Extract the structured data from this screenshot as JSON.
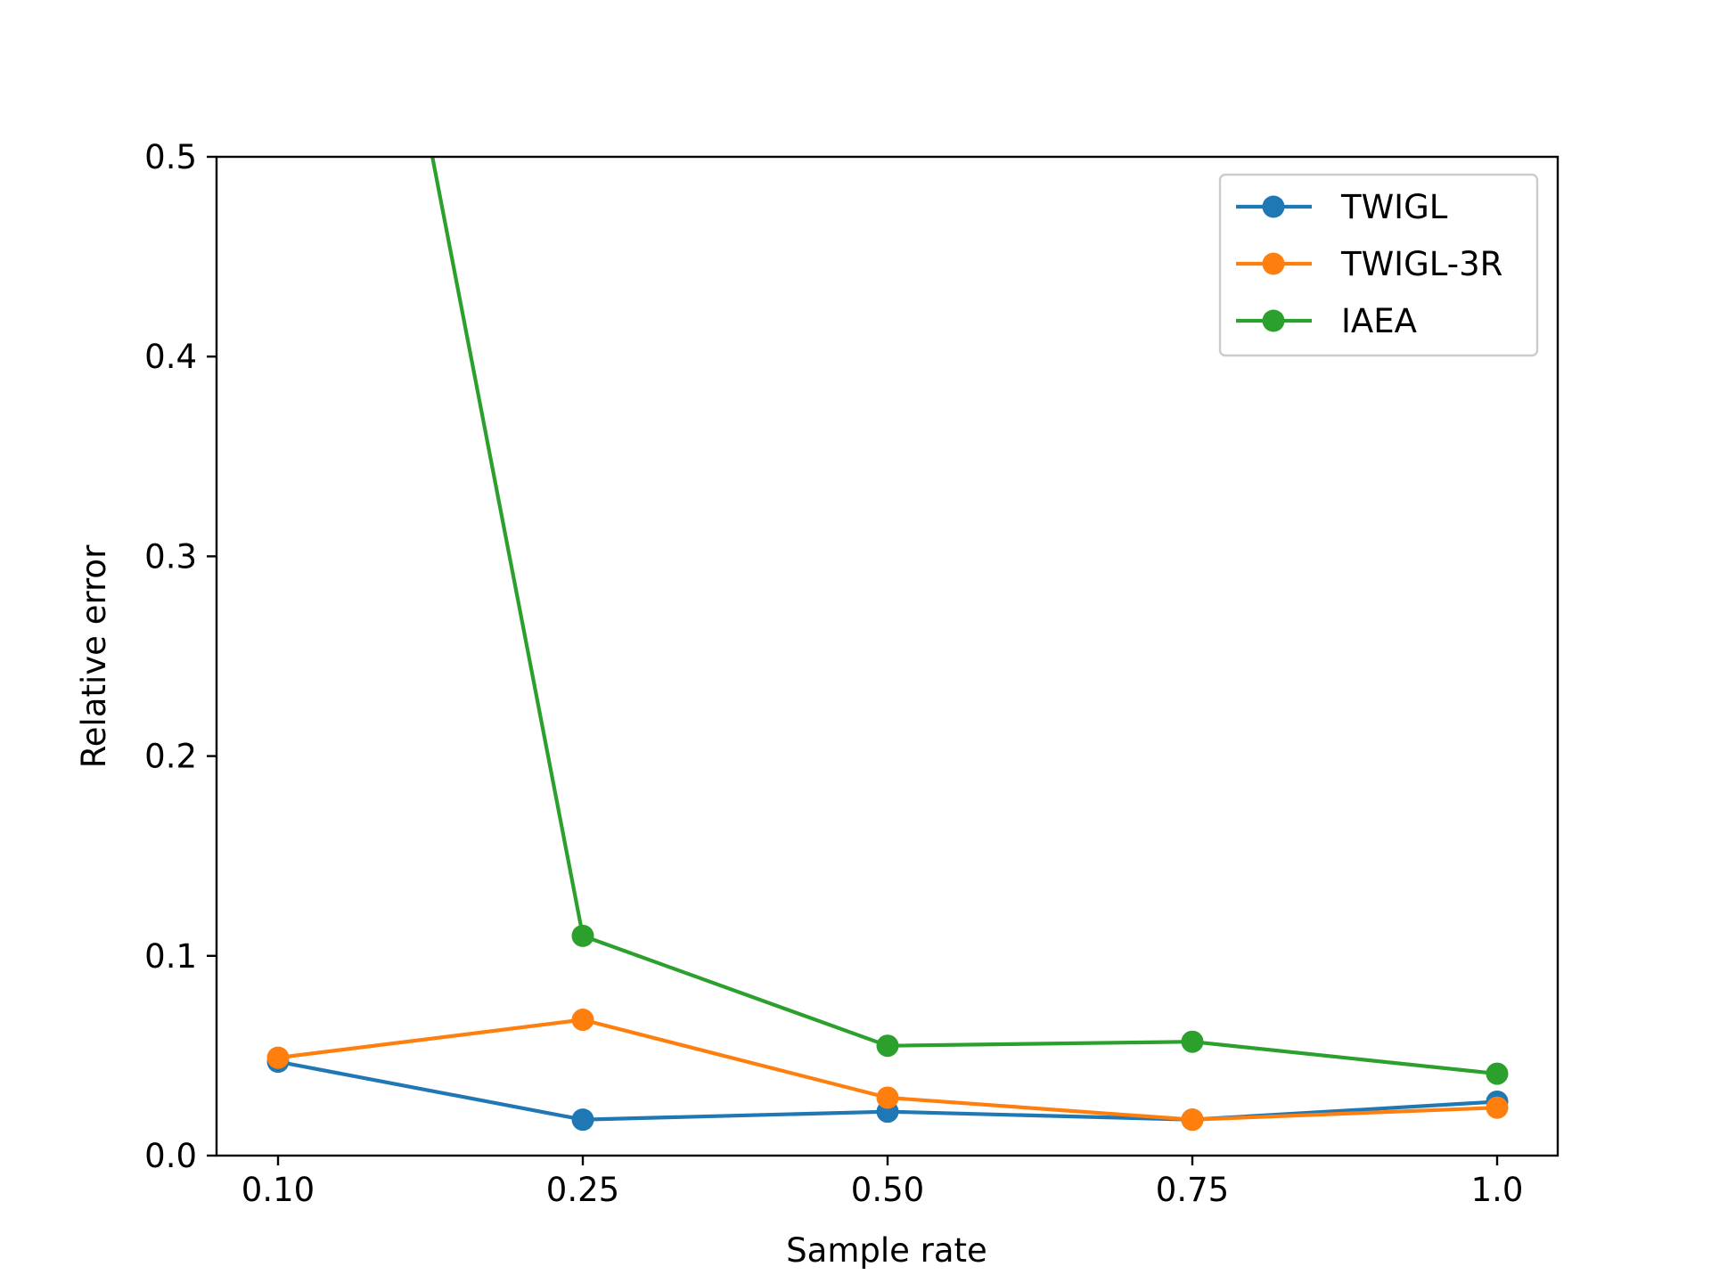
{
  "chart_data": {
    "type": "line",
    "x_tick_labels": [
      "0.10",
      "0.25",
      "0.50",
      "0.75",
      "1.0"
    ],
    "y_tick_labels": [
      "0.0",
      "0.1",
      "0.2",
      "0.3",
      "0.4",
      "0.5"
    ],
    "y_ticks": [
      0.0,
      0.1,
      0.2,
      0.3,
      0.4,
      0.5
    ],
    "ylim": [
      0,
      0.5
    ],
    "xlabel": "Sample rate",
    "ylabel": "Relative error",
    "grid": false,
    "legend_position": "top-right",
    "series": [
      {
        "name": "TWIGL",
        "color": "#1f77b4",
        "values": [
          0.047,
          0.018,
          0.022,
          0.018,
          0.027
        ]
      },
      {
        "name": "TWIGL-3R",
        "color": "#ff7f0e",
        "values": [
          0.049,
          0.068,
          0.029,
          0.018,
          0.024
        ]
      },
      {
        "name": "IAEA",
        "color": "#2ca02c",
        "values": [
          0.9,
          0.11,
          0.055,
          0.057,
          0.041
        ]
      }
    ]
  }
}
